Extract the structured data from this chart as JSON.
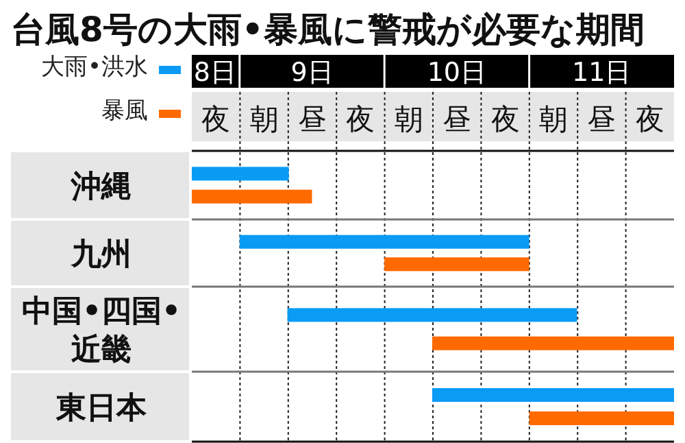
{
  "chart_data": {
    "type": "bar",
    "orientation": "horizontal",
    "title": "台風8号の大雨•暴風に警戒が必要な期間",
    "categories": [
      "沖縄",
      "九州",
      "中国•四国•\n近畿",
      "東日本"
    ],
    "series": [
      {
        "name": "大雨•洪水",
        "color": "#0a9bf5",
        "base": [
          8.17,
          8.5,
          8.83,
          9.83
        ],
        "values": [
          0.67,
          2,
          2,
          1.67
        ]
      },
      {
        "name": "暴風",
        "color": "#ff6a00",
        "base": [
          8.17,
          9.5,
          9.83,
          10.5
        ],
        "values": [
          0.83,
          1,
          1.67,
          1
        ]
      }
    ],
    "xlim": [
      8.17,
      11.5
    ],
    "xticks": [
      {
        "value": 8.33,
        "label": "8日"
      },
      {
        "value": 9,
        "label": "9日"
      },
      {
        "value": 10,
        "label": "10日"
      },
      {
        "value": 11,
        "label": "11日"
      }
    ],
    "annotations": [
      "夜",
      "朝",
      "昼",
      "夜",
      "朝",
      "昼",
      "夜",
      "朝",
      "昼",
      "夜"
    ],
    "grid": "x",
    "legend": "top left"
  }
}
